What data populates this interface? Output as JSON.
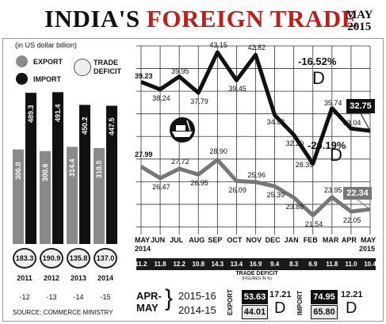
{
  "title_part1": "INDIA'S ",
  "title_part2": "FOREIGN TRADE",
  "corner_month": "MAY",
  "corner_year": "2015",
  "unit_note": "(in US dollar billion)",
  "legend": {
    "export": "EXPORT",
    "import": "IMPORT",
    "deficit_line1": "TRADE",
    "deficit_line2": "DEFICIT"
  },
  "colors": {
    "export": "#8a8a8a",
    "import": "#111111",
    "deficit": "#eeeeee",
    "accent": "#b8211d"
  },
  "annual": {
    "years": [
      "2011",
      "2012",
      "2013",
      "2014"
    ],
    "export": [
      "306.0",
      "300.6",
      "314.4",
      "310.5"
    ],
    "import": [
      "489.3",
      "491.4",
      "450.2",
      "447.5"
    ],
    "deficit": [
      "183.3",
      "190.9",
      "135.8",
      "137.0"
    ],
    "change": [
      "-12",
      "-13",
      "-14",
      "-15"
    ]
  },
  "source": "SOURCE: COMMERCE MINISTRY",
  "chart_data": {
    "type": "line",
    "categories": [
      "MAY 2014",
      "JUN",
      "JUL",
      "AUG",
      "SEP",
      "OCT",
      "NOV",
      "DEC",
      "JAN",
      "FEB",
      "MAR",
      "APR",
      "MAY 2015"
    ],
    "series": [
      {
        "name": "IMPORT",
        "values": [
          39.23,
          38.24,
          39.95,
          37.79,
          43.15,
          39.45,
          42.82,
          34.83,
          32.2,
          28.39,
          35.74,
          33.04,
          32.75
        ]
      },
      {
        "name": "EXPORT",
        "values": [
          27.99,
          26.47,
          27.72,
          26.95,
          28.9,
          26.09,
          25.96,
          25.39,
          23.88,
          21.54,
          23.95,
          22.05,
          22.34
        ]
      }
    ],
    "value_labels": {
      "import": [
        "39.23",
        "38.24",
        "39.95",
        "37.79",
        "43.15",
        "39.45",
        "42.82",
        "34.83",
        "32.20",
        "28.39",
        "35.74",
        "33.04",
        "32.75"
      ],
      "export": [
        "27.99",
        "26.47",
        "27.72",
        "26.95",
        "28.90",
        "26.09",
        "25.96",
        "25.39",
        "23.88",
        "21.54",
        "23.95",
        "22.05",
        "22.34"
      ]
    },
    "ylim": [
      19,
      44
    ],
    "grid": true,
    "annotations": {
      "import_change": "-16.52%",
      "export_change": "-20.19%",
      "down_letter": "D"
    },
    "trade_deficit": [
      "11.2",
      "11.8",
      "12.2",
      "10.8",
      "14.3",
      "13.4",
      "16.9",
      "9.4",
      "8.3",
      "6.9",
      "11.8",
      "11.0",
      "10.4"
    ],
    "trade_deficit_label": "TRADE DEFICIT",
    "trade_deficit_sub": "(FIGURES IN %)",
    "month_labels": [
      "MAY",
      "JUN",
      "JUL",
      "AUG",
      "SEP",
      "OCT",
      "NOV",
      "DEC",
      "JAN",
      "FEB",
      "MAR",
      "APR",
      "MAY"
    ],
    "year_start": "2014",
    "year_end": "2015"
  },
  "period_compare": {
    "label1": "APR-",
    "label2": "MAY",
    "year_current": "2015-16",
    "year_previous": "2014-15",
    "export_label": "EXPORT",
    "import_label": "IMPORT",
    "export_current": "53.63",
    "export_previous": "44.01",
    "export_change": "17.21",
    "import_current": "74.95",
    "import_previous": "65.80",
    "import_change": "12.21",
    "down_letter": "D"
  }
}
